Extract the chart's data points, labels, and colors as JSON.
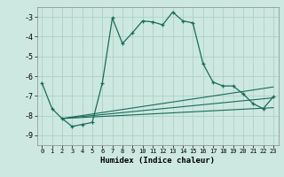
{
  "xlabel": "Humidex (Indice chaleur)",
  "bg_color": "#cce8e0",
  "line_color": "#1a6b5a",
  "grid_color": "#aaccbb",
  "xlim": [
    -0.5,
    23.5
  ],
  "ylim": [
    -9.5,
    -2.5
  ],
  "yticks": [
    -9,
    -8,
    -7,
    -6,
    -5,
    -4,
    -3
  ],
  "xticks": [
    0,
    1,
    2,
    3,
    4,
    5,
    6,
    7,
    8,
    9,
    10,
    11,
    12,
    13,
    14,
    15,
    16,
    17,
    18,
    19,
    20,
    21,
    22,
    23
  ],
  "main_line": {
    "x": [
      0,
      1,
      2,
      3,
      4,
      5,
      6,
      7,
      8,
      9,
      10,
      11,
      12,
      13,
      14,
      15,
      16,
      17,
      18,
      19,
      20,
      21,
      22,
      23
    ],
    "y": [
      -6.35,
      -7.65,
      -8.15,
      -8.55,
      -8.45,
      -8.35,
      -6.35,
      -3.05,
      -4.35,
      -3.8,
      -3.2,
      -3.25,
      -3.4,
      -2.75,
      -3.2,
      -3.3,
      -5.35,
      -6.3,
      -6.5,
      -6.5,
      -6.9,
      -7.4,
      -7.65,
      -7.05
    ]
  },
  "flat_lines": [
    {
      "x": [
        2,
        23
      ],
      "y": [
        -8.15,
        -6.55
      ]
    },
    {
      "x": [
        2,
        23
      ],
      "y": [
        -8.15,
        -7.1
      ]
    },
    {
      "x": [
        2,
        23
      ],
      "y": [
        -8.15,
        -7.6
      ]
    }
  ]
}
